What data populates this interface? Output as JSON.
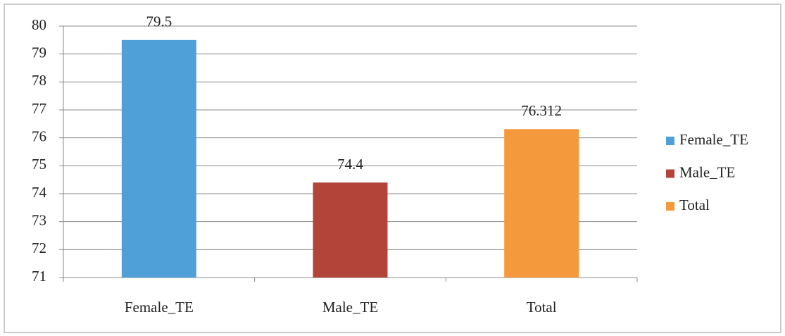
{
  "chart_data": {
    "type": "bar",
    "categories": [
      "Female_TE",
      "Male_TE",
      "Total"
    ],
    "values": [
      79.5,
      74.4,
      76.312
    ],
    "colors": [
      "#4f9fd8",
      "#b2443a",
      "#f59a3c"
    ],
    "ylim": [
      71,
      80
    ],
    "yticks": [
      71,
      72,
      73,
      74,
      75,
      76,
      77,
      78,
      79,
      80
    ],
    "grid": true,
    "legend": "right"
  }
}
